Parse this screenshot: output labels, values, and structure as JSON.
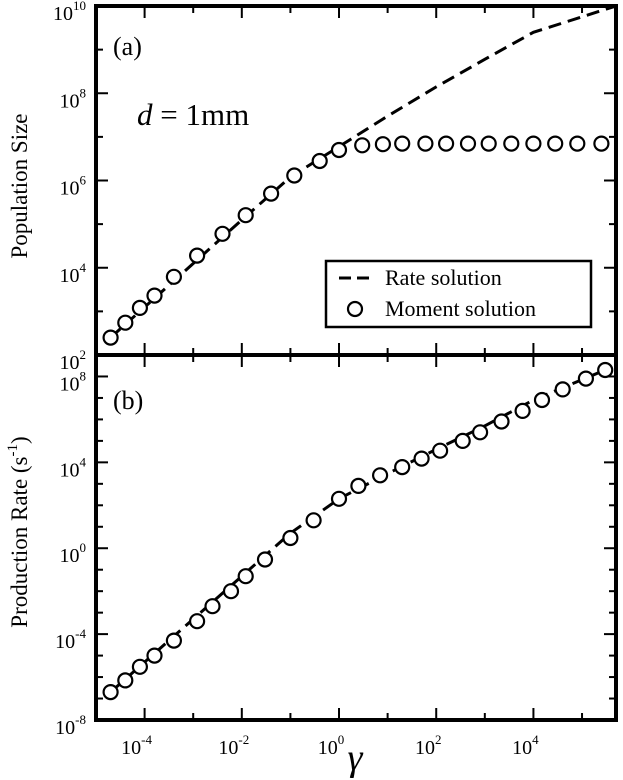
{
  "chart_data": [
    {
      "type": "line",
      "panel_label": "(a)",
      "annotation": {
        "variable": "d",
        "equals": " = 1mm"
      },
      "ylabel": "Population Size",
      "xlabel": "γ",
      "x_scale": "log",
      "y_scale": "log",
      "xlim": [
        1e-05,
        500000
      ],
      "ylim": [
        100,
        10000000000
      ],
      "x_ticks": [
        {
          "base": "10",
          "exp": "-4",
          "value": 0.0001
        },
        {
          "base": "10",
          "exp": "-2",
          "value": 0.01
        },
        {
          "base": "10",
          "exp": "0",
          "value": 1
        },
        {
          "base": "10",
          "exp": "2",
          "value": 100
        },
        {
          "base": "10",
          "exp": "4",
          "value": 10000
        }
      ],
      "y_ticks": [
        {
          "base": "10",
          "exp": "2",
          "value": 100
        },
        {
          "base": "10",
          "exp": "4",
          "value": 10000
        },
        {
          "base": "10",
          "exp": "6",
          "value": 1000000
        },
        {
          "base": "10",
          "exp": "8",
          "value": 100000000
        },
        {
          "base": "10",
          "exp": "10",
          "value": 10000000000
        }
      ],
      "legend": {
        "position": "bottom-right",
        "entries": [
          "Rate solution",
          "Moment solution"
        ]
      },
      "series": [
        {
          "name": "Rate solution",
          "style": "dashed",
          "x": [
            2e-05,
            0.0001,
            0.001,
            0.01,
            0.1,
            1,
            10,
            100,
            1000,
            10000,
            500000
          ],
          "y": [
            250,
            1250,
            12500,
            125000,
            1200000,
            6000000,
            30000000,
            140000000,
            600000000,
            2500000000,
            10000000000
          ]
        },
        {
          "name": "Moment solution",
          "style": "open-circle",
          "x": [
            2e-05,
            4e-05,
            8e-05,
            0.00016,
            0.0004,
            0.0012,
            0.004,
            0.012,
            0.04,
            0.12,
            0.4,
            1,
            3,
            8,
            20,
            60,
            160,
            450,
            1200,
            3500,
            10000,
            28000,
            80000,
            250000
          ],
          "y": [
            250,
            550,
            1200,
            2300,
            6200,
            19000,
            60000,
            160000,
            500000,
            1300000,
            2800000,
            5000000,
            6400000,
            6800000,
            7000000,
            7000000,
            7000000,
            7000000,
            7000000,
            7000000,
            7000000,
            7000000,
            7000000,
            7000000
          ]
        }
      ]
    },
    {
      "type": "line",
      "panel_label": "(b)",
      "ylabel": "Production Rate (s",
      "ylabel_sup": "-1",
      "ylabel_end": ")",
      "xlabel": "γ",
      "x_scale": "log",
      "y_scale": "log",
      "xlim": [
        1e-05,
        500000
      ],
      "ylim": [
        1e-08,
        1000000000
      ],
      "x_ticks": [
        {
          "base": "10",
          "exp": "-4",
          "value": 0.0001
        },
        {
          "base": "10",
          "exp": "-2",
          "value": 0.01
        },
        {
          "base": "10",
          "exp": "0",
          "value": 1
        },
        {
          "base": "10",
          "exp": "2",
          "value": 100
        },
        {
          "base": "10",
          "exp": "4",
          "value": 10000
        }
      ],
      "y_ticks": [
        {
          "base": "10",
          "exp": "-8",
          "value": 1e-08
        },
        {
          "base": "10",
          "exp": "-4",
          "value": 0.0001
        },
        {
          "base": "10",
          "exp": "0",
          "value": 1
        },
        {
          "base": "10",
          "exp": "4",
          "value": 10000
        },
        {
          "base": "10",
          "exp": "8",
          "value": 100000000
        }
      ],
      "series": [
        {
          "name": "Rate solution",
          "style": "dashed",
          "x": [
            2e-05,
            0.0001,
            0.001,
            0.01,
            0.1,
            1,
            10,
            100,
            1000,
            10000,
            300000
          ],
          "y": [
            2e-07,
            5e-06,
            0.0005,
            0.05,
            5,
            200,
            3000,
            40000,
            500000,
            8000000,
            200000000
          ]
        },
        {
          "name": "Moment solution",
          "style": "open-circle",
          "x": [
            2e-05,
            4e-05,
            8e-05,
            0.00016,
            0.0004,
            0.0012,
            0.0025,
            0.006,
            0.012,
            0.03,
            0.1,
            0.3,
            1,
            2.5,
            7,
            20,
            50,
            120,
            350,
            800,
            2200,
            6000,
            15000,
            40000,
            120000,
            300000
          ],
          "y": [
            2e-07,
            7e-07,
            3e-06,
            1e-05,
            5e-05,
            0.0004,
            0.002,
            0.01,
            0.05,
            0.3,
            3,
            20,
            200,
            800,
            2500,
            6000,
            15000,
            35000,
            100000,
            250000,
            800000,
            2500000,
            8000000,
            25000000,
            80000000,
            200000000
          ]
        }
      ]
    }
  ]
}
